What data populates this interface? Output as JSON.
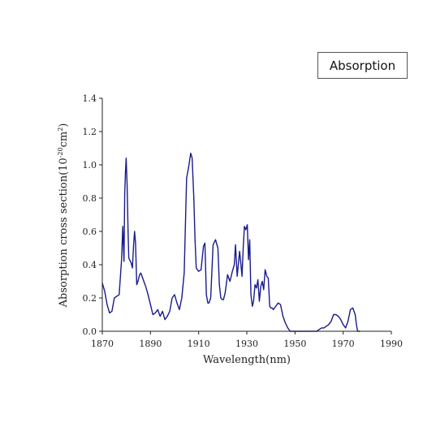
{
  "legend": {
    "label": "Absorption"
  },
  "chart_data": {
    "type": "line",
    "xlabel": "Wavelength(nm)",
    "ylabel_main": "Absorption cross section(10",
    "ylabel_exp": "-20",
    "ylabel_unit": "cm",
    "ylabel_exp2": "2",
    "ylabel_close": ")",
    "xlim": [
      1870,
      1990
    ],
    "ylim": [
      0.0,
      1.4
    ],
    "xticks": [
      1870,
      1890,
      1910,
      1930,
      1950,
      1970,
      1990
    ],
    "yticks": [
      0.0,
      0.2,
      0.4,
      0.6,
      0.8,
      1.0,
      1.2,
      1.4
    ],
    "xtick_labels": [
      "1870",
      "1890",
      "1910",
      "1930",
      "1950",
      "1970",
      "1990"
    ],
    "ytick_labels": [
      "0.0",
      "0.2",
      "0.4",
      "0.6",
      "0.8",
      "1.0",
      "1.2",
      "1.4"
    ],
    "line_color": "#1a1a8c",
    "series": [
      {
        "x": [
          1870,
          1871,
          1872,
          1873,
          1874,
          1875,
          1876,
          1877,
          1878,
          1878.5,
          1879,
          1879.3,
          1879.6,
          1879.9,
          1880.3,
          1880.7,
          1881,
          1882,
          1882.5,
          1883,
          1883.4,
          1883.8,
          1884.3,
          1884.8,
          1885.5,
          1886,
          1887,
          1888,
          1889,
          1890,
          1891,
          1892,
          1893,
          1894,
          1895,
          1896,
          1897,
          1898,
          1899,
          1900,
          1901,
          1902,
          1903,
          1904,
          1905,
          1906,
          1906.7,
          1907.3,
          1908,
          1908.5,
          1909,
          1910,
          1911,
          1912,
          1912.6,
          1913.2,
          1913.8,
          1914.3,
          1915,
          1916,
          1917,
          1918,
          1918.6,
          1919.2,
          1919.8,
          1920.3,
          1921,
          1922,
          1923,
          1924,
          1924.8,
          1925.3,
          1926,
          1927,
          1927.5,
          1928,
          1928.5,
          1929,
          1929.6,
          1930.2,
          1930.7,
          1931.2,
          1931.7,
          1932.3,
          1932.8,
          1933.4,
          1934,
          1934.6,
          1935.2,
          1935.8,
          1936.4,
          1937,
          1937.6,
          1938.3,
          1938.9,
          1939.5,
          1940,
          1940.6,
          1941,
          1942,
          1943,
          1944,
          1945,
          1946,
          1947,
          1948,
          1949,
          1950,
          1955,
          1959,
          1960,
          1961,
          1962,
          1963,
          1964,
          1965,
          1966,
          1967,
          1968,
          1969,
          1970,
          1971,
          1972,
          1973,
          1974,
          1975,
          1975.5,
          1976,
          1977
        ],
        "y": [
          0.29,
          0.24,
          0.16,
          0.11,
          0.12,
          0.2,
          0.21,
          0.22,
          0.43,
          0.63,
          0.42,
          0.82,
          0.95,
          1.04,
          0.88,
          0.6,
          0.44,
          0.41,
          0.38,
          0.52,
          0.6,
          0.53,
          0.28,
          0.3,
          0.34,
          0.35,
          0.31,
          0.27,
          0.22,
          0.16,
          0.1,
          0.11,
          0.13,
          0.09,
          0.12,
          0.07,
          0.09,
          0.12,
          0.2,
          0.22,
          0.17,
          0.13,
          0.2,
          0.35,
          0.92,
          1.0,
          1.07,
          1.04,
          0.8,
          0.55,
          0.38,
          0.36,
          0.37,
          0.51,
          0.53,
          0.22,
          0.17,
          0.17,
          0.2,
          0.52,
          0.55,
          0.5,
          0.28,
          0.2,
          0.19,
          0.19,
          0.23,
          0.34,
          0.3,
          0.36,
          0.4,
          0.52,
          0.33,
          0.48,
          0.41,
          0.33,
          0.5,
          0.63,
          0.61,
          0.64,
          0.43,
          0.55,
          0.22,
          0.15,
          0.18,
          0.28,
          0.26,
          0.31,
          0.18,
          0.27,
          0.3,
          0.25,
          0.37,
          0.33,
          0.32,
          0.15,
          0.14,
          0.14,
          0.13,
          0.15,
          0.17,
          0.16,
          0.09,
          0.05,
          0.02,
          0.0,
          0.0,
          0.0,
          0.0,
          0.0,
          0.01,
          0.02,
          0.02,
          0.03,
          0.04,
          0.06,
          0.1,
          0.1,
          0.09,
          0.07,
          0.04,
          0.02,
          0.06,
          0.13,
          0.14,
          0.1,
          0.04,
          0.0,
          0.0
        ]
      }
    ]
  }
}
